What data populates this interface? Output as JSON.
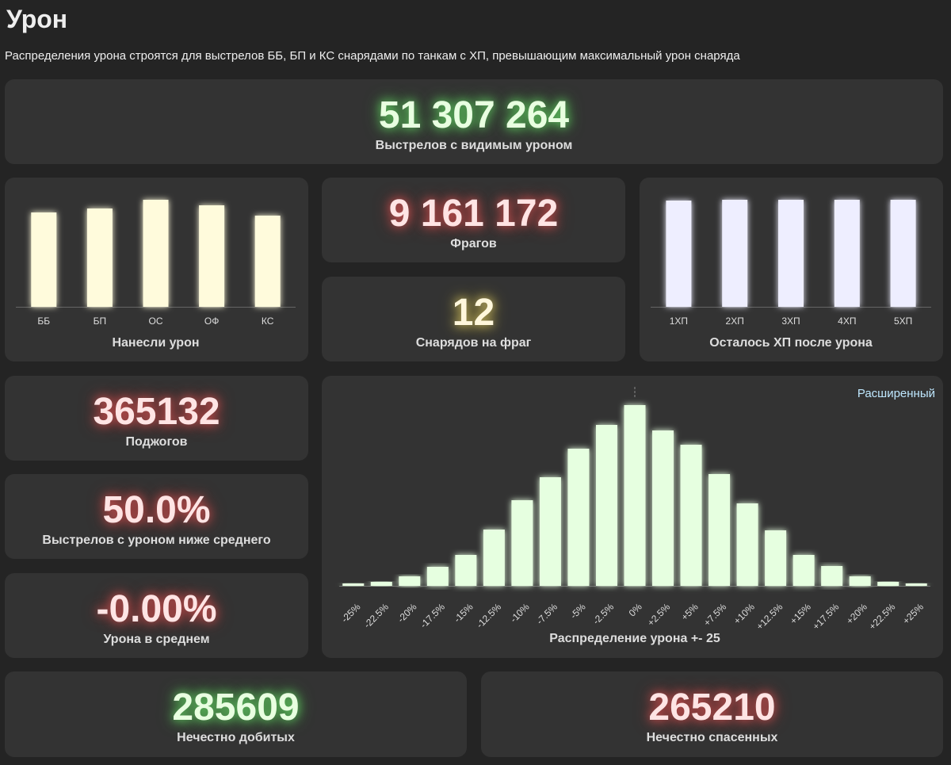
{
  "header": {
    "title": "Урон",
    "subtitle": "Распределения урона строятся для выстрелов ББ, БП и КС снарядами по танкам с ХП, превышающим максимальный урон снаряда"
  },
  "stats": [
    {
      "value": "51 307 264",
      "label": "Выстрелов с видимым уроном"
    },
    {
      "value": "9 161 172",
      "label": "Фрагов"
    },
    {
      "value": "12",
      "label": "Снарядов на фраг"
    },
    {
      "value": "365132",
      "label": "Поджогов"
    },
    {
      "value": "50.0%",
      "label": "Выстрелов с уроном ниже среднего"
    },
    {
      "value": "-0.00%",
      "label": "Урона в среднем"
    },
    {
      "value": "285609",
      "label": "Нечестно добитых"
    },
    {
      "value": "265210",
      "label": "Нечестно спасенных"
    }
  ],
  "link": "Расширенный",
  "chart_data": [
    {
      "type": "bar",
      "title": "Нанесли урон",
      "categories": [
        "ББ",
        "БП",
        "ОС",
        "ОФ",
        "КС"
      ],
      "values": [
        119,
        124,
        135,
        128,
        115
      ],
      "color": "#fffbdc"
    },
    {
      "type": "bar",
      "title": "Осталось ХП после урона",
      "categories": [
        "1ХП",
        "2ХП",
        "3ХП",
        "4ХП",
        "5ХП"
      ],
      "values": [
        134,
        135,
        135,
        135,
        135
      ],
      "color": "#eeeeff"
    },
    {
      "type": "bar",
      "title": "Распределение урона +- 25",
      "categories": [
        "-25%",
        "-22.5%",
        "-20%",
        "-17.5%",
        "-15%",
        "-12.5%",
        "-10%",
        "-7.5%",
        "-5%",
        "-2.5%",
        "0%",
        "+2.5%",
        "+5%",
        "+7.5%",
        "+10%",
        "+12.5%",
        "+15%",
        "+17.5%",
        "+20%",
        "+22.5%",
        "+25%"
      ],
      "values": [
        3,
        5,
        12,
        24,
        39,
        71,
        108,
        137,
        173,
        203,
        228,
        196,
        178,
        141,
        104,
        70,
        39,
        25,
        12,
        5,
        3
      ],
      "color": "#e6ffe0"
    }
  ]
}
